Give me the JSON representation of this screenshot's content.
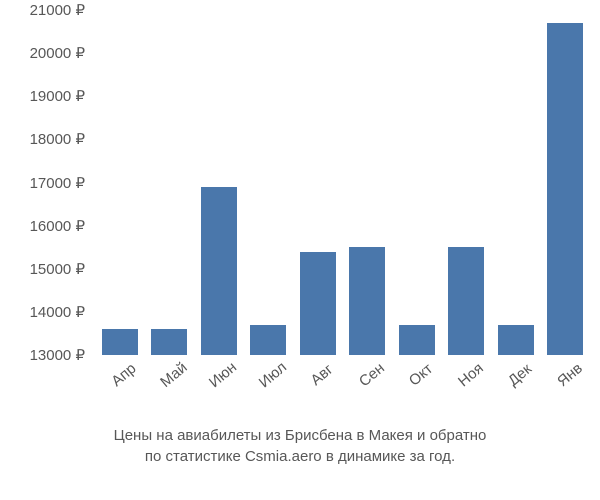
{
  "chart": {
    "type": "bar",
    "currency_symbol": "₽",
    "categories": [
      "Апр",
      "Май",
      "Июн",
      "Июл",
      "Авг",
      "Сен",
      "Окт",
      "Ноя",
      "Дек",
      "Янв"
    ],
    "values": [
      13600,
      13600,
      16900,
      13700,
      15400,
      15500,
      13700,
      15500,
      13700,
      20700
    ],
    "bar_color": "#4a77ab",
    "background_color": "#ffffff",
    "tick_text_color": "#575757",
    "ylim": [
      13000,
      21000
    ],
    "ytick_step": 1000,
    "yticks": [
      13000,
      14000,
      15000,
      16000,
      17000,
      18000,
      19000,
      20000,
      21000
    ],
    "label_fontsize": 15,
    "tick_fontsize": 15,
    "x_label_rotation_deg": -40,
    "bar_width_ratio": 0.72
  },
  "caption": {
    "line1": "Цены на авиабилеты из Брисбена в Макея и обратно",
    "line2": "по статистике Csmia.aero в динамике за год."
  }
}
